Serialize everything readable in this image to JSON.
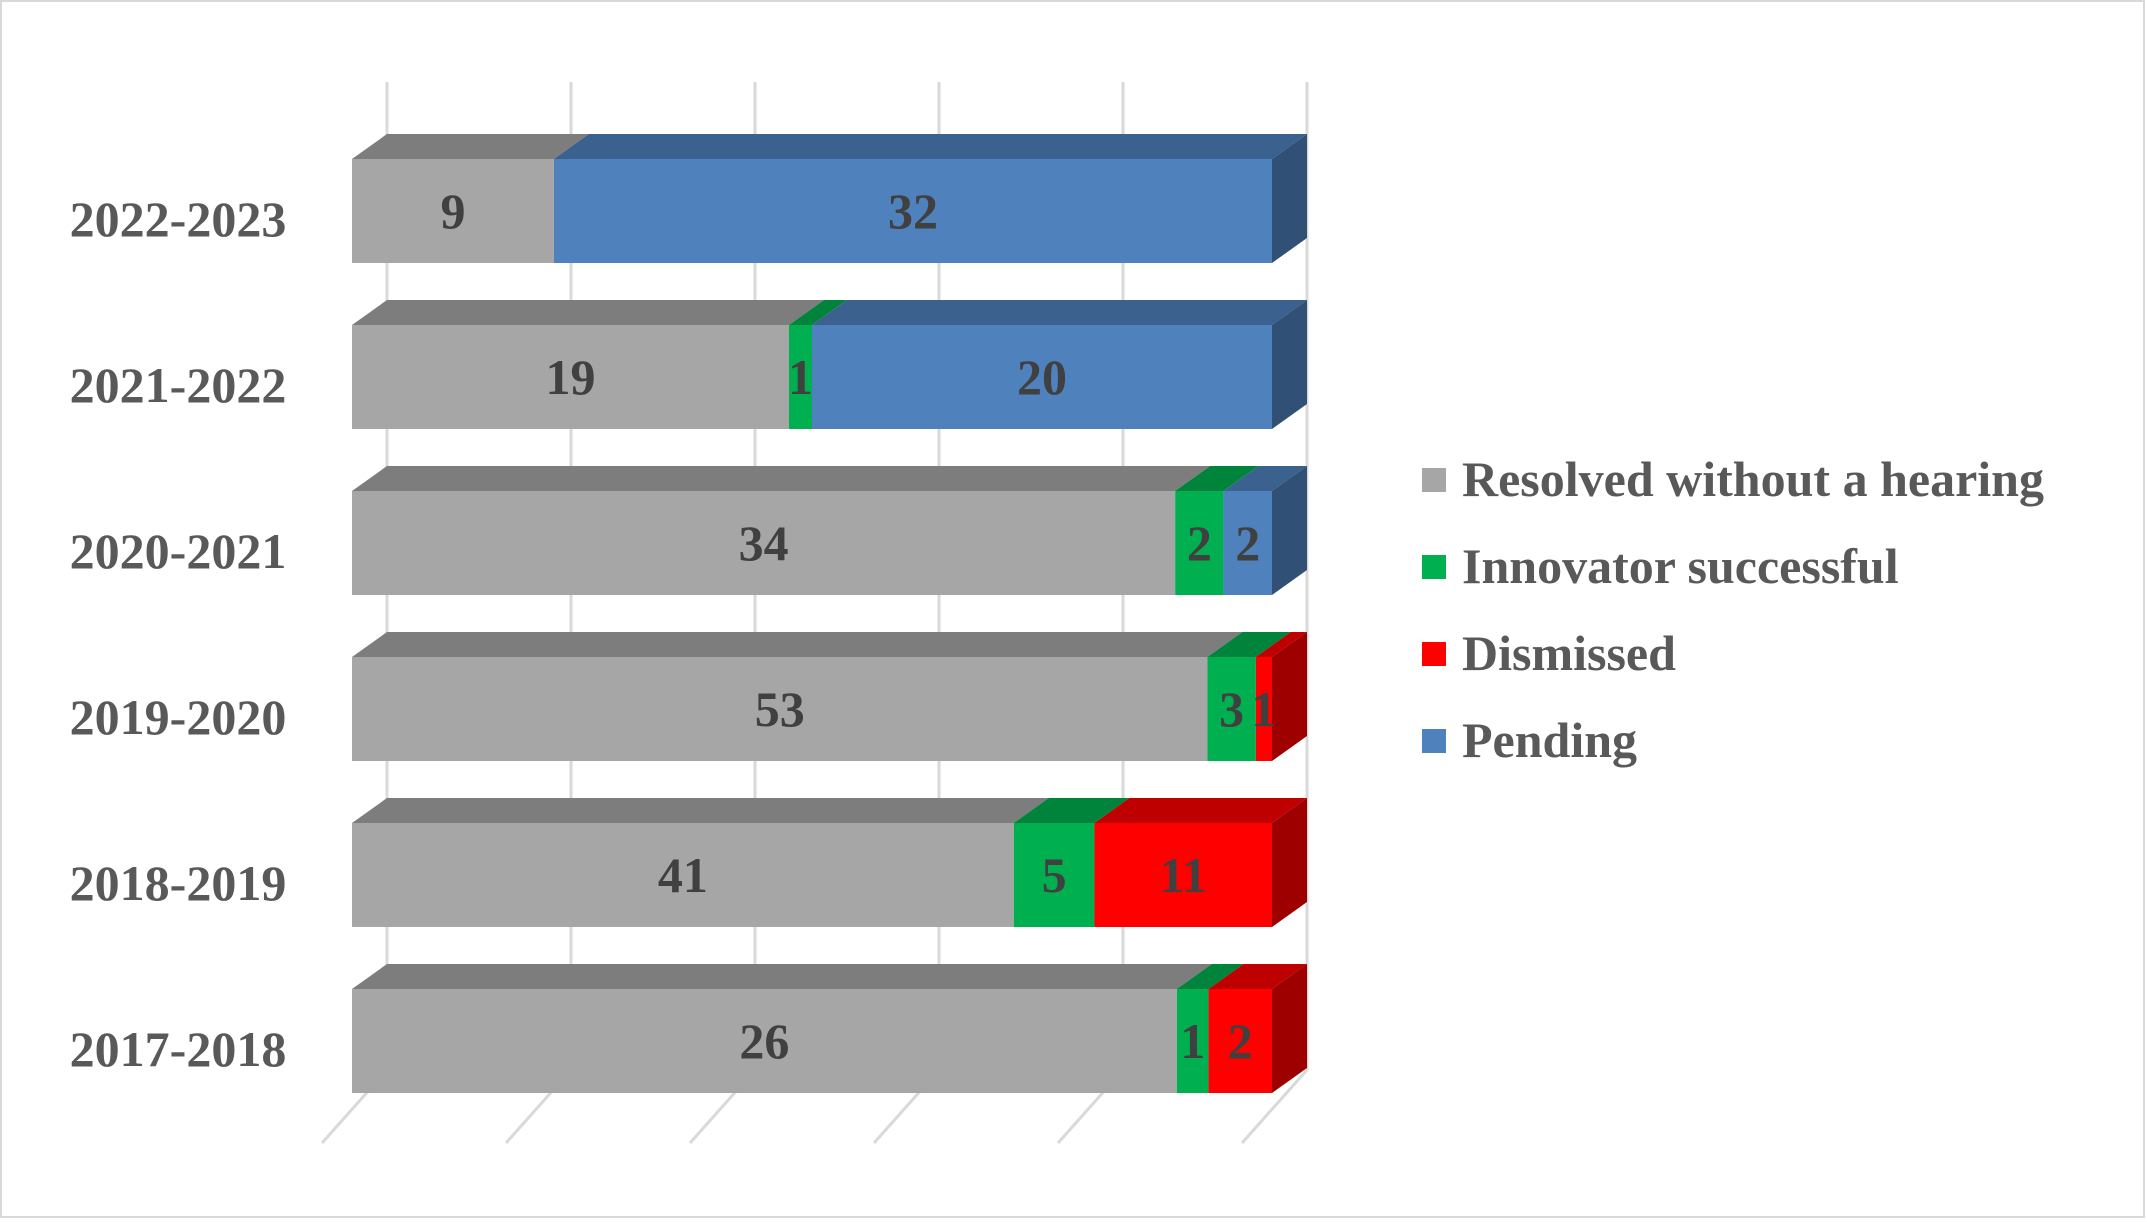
{
  "chart_data": {
    "type": "bar",
    "orientation": "horizontal",
    "stacked": true,
    "style": "3d",
    "categories": [
      "2022-2023",
      "2021-2022",
      "2020-2021",
      "2019-2020",
      "2018-2019",
      "2017-2018"
    ],
    "series": [
      {
        "name": "Resolved without a hearing",
        "color": "#a6a6a6",
        "values": [
          9,
          19,
          34,
          53,
          41,
          26
        ]
      },
      {
        "name": "Innovator successful",
        "color": "#00b050",
        "values": [
          0,
          1,
          2,
          3,
          5,
          1
        ]
      },
      {
        "name": "Dismissed",
        "color": "#ff0000",
        "values": [
          0,
          0,
          0,
          1,
          11,
          2
        ]
      },
      {
        "name": "Pending",
        "color": "#4f81bd",
        "values": [
          32,
          20,
          2,
          0,
          0,
          0
        ]
      }
    ],
    "value_axis": {
      "scale": "percent-of-row",
      "range": [
        0,
        100
      ],
      "tick_labels": false
    },
    "grid": true,
    "legend": "right",
    "title": "",
    "xlabel": "",
    "ylabel": ""
  }
}
